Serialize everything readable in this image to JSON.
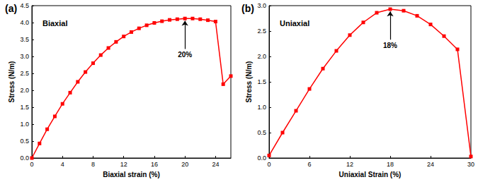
{
  "chart_data": [
    {
      "type": "line",
      "title": "(a)",
      "subtitle": "Biaxial",
      "x_label": "Biaxial strain (%)",
      "y_label": "Stress (N/m)",
      "x": [
        0,
        1,
        2,
        3,
        4,
        5,
        6,
        7,
        8,
        9,
        10,
        11,
        12,
        13,
        14,
        15,
        16,
        17,
        18,
        19,
        20,
        21,
        22,
        23,
        24,
        25,
        26
      ],
      "values": [
        0,
        0.43,
        0.85,
        1.23,
        1.6,
        1.93,
        2.25,
        2.54,
        2.8,
        3.04,
        3.25,
        3.43,
        3.59,
        3.72,
        3.83,
        3.92,
        3.99,
        4.04,
        4.08,
        4.1,
        4.12,
        4.12,
        4.1,
        4.07,
        4.03,
        2.18,
        2.42
      ],
      "color": "#ff0000",
      "marker": "square",
      "line_style": "solid",
      "xlim": [
        0,
        26
      ],
      "xticks": [
        0,
        4,
        8,
        12,
        16,
        20,
        24
      ],
      "ylim": [
        0,
        4.5
      ],
      "yticks": [
        {
          "value": 0,
          "label": "0.0"
        },
        0.5,
        {
          "value": 1,
          "label": "1.0"
        },
        1.5,
        {
          "value": 2,
          "label": "2.0"
        },
        2.5,
        {
          "value": 3,
          "label": "3.0"
        },
        3.5,
        {
          "value": 4,
          "label": "4.0"
        },
        4.5
      ],
      "annotations": [
        {
          "text": "20%",
          "x": 20,
          "y": 4.12
        }
      ],
      "grid": false
    },
    {
      "type": "line",
      "title": "(b)",
      "subtitle": "Uniaxial",
      "x_label": "Uniaxial Strain (%)",
      "y_label": "Stress (N/m)",
      "x": [
        0,
        2,
        4,
        6,
        8,
        10,
        12,
        14,
        16,
        18,
        20,
        22,
        24,
        26,
        28,
        30
      ],
      "values": [
        0.05,
        0.5,
        0.93,
        1.36,
        1.76,
        2.11,
        2.42,
        2.67,
        2.86,
        2.93,
        2.9,
        2.8,
        2.63,
        2.4,
        2.14,
        0.03
      ],
      "color": "#ff0000",
      "marker": "square",
      "line_style": "solid",
      "xlim": [
        0,
        30
      ],
      "xticks": [
        0,
        6,
        12,
        18,
        24,
        30
      ],
      "ylim": [
        0,
        3
      ],
      "yticks": [
        {
          "value": 0,
          "label": "0.0"
        },
        0.5,
        {
          "value": 1,
          "label": "1.0"
        },
        1.5,
        {
          "value": 2,
          "label": "2.0"
        },
        2.5,
        {
          "value": 3,
          "label": "3.0"
        }
      ],
      "annotations": [
        {
          "text": "18%",
          "x": 18,
          "y": 2.93
        }
      ],
      "grid": false
    }
  ]
}
